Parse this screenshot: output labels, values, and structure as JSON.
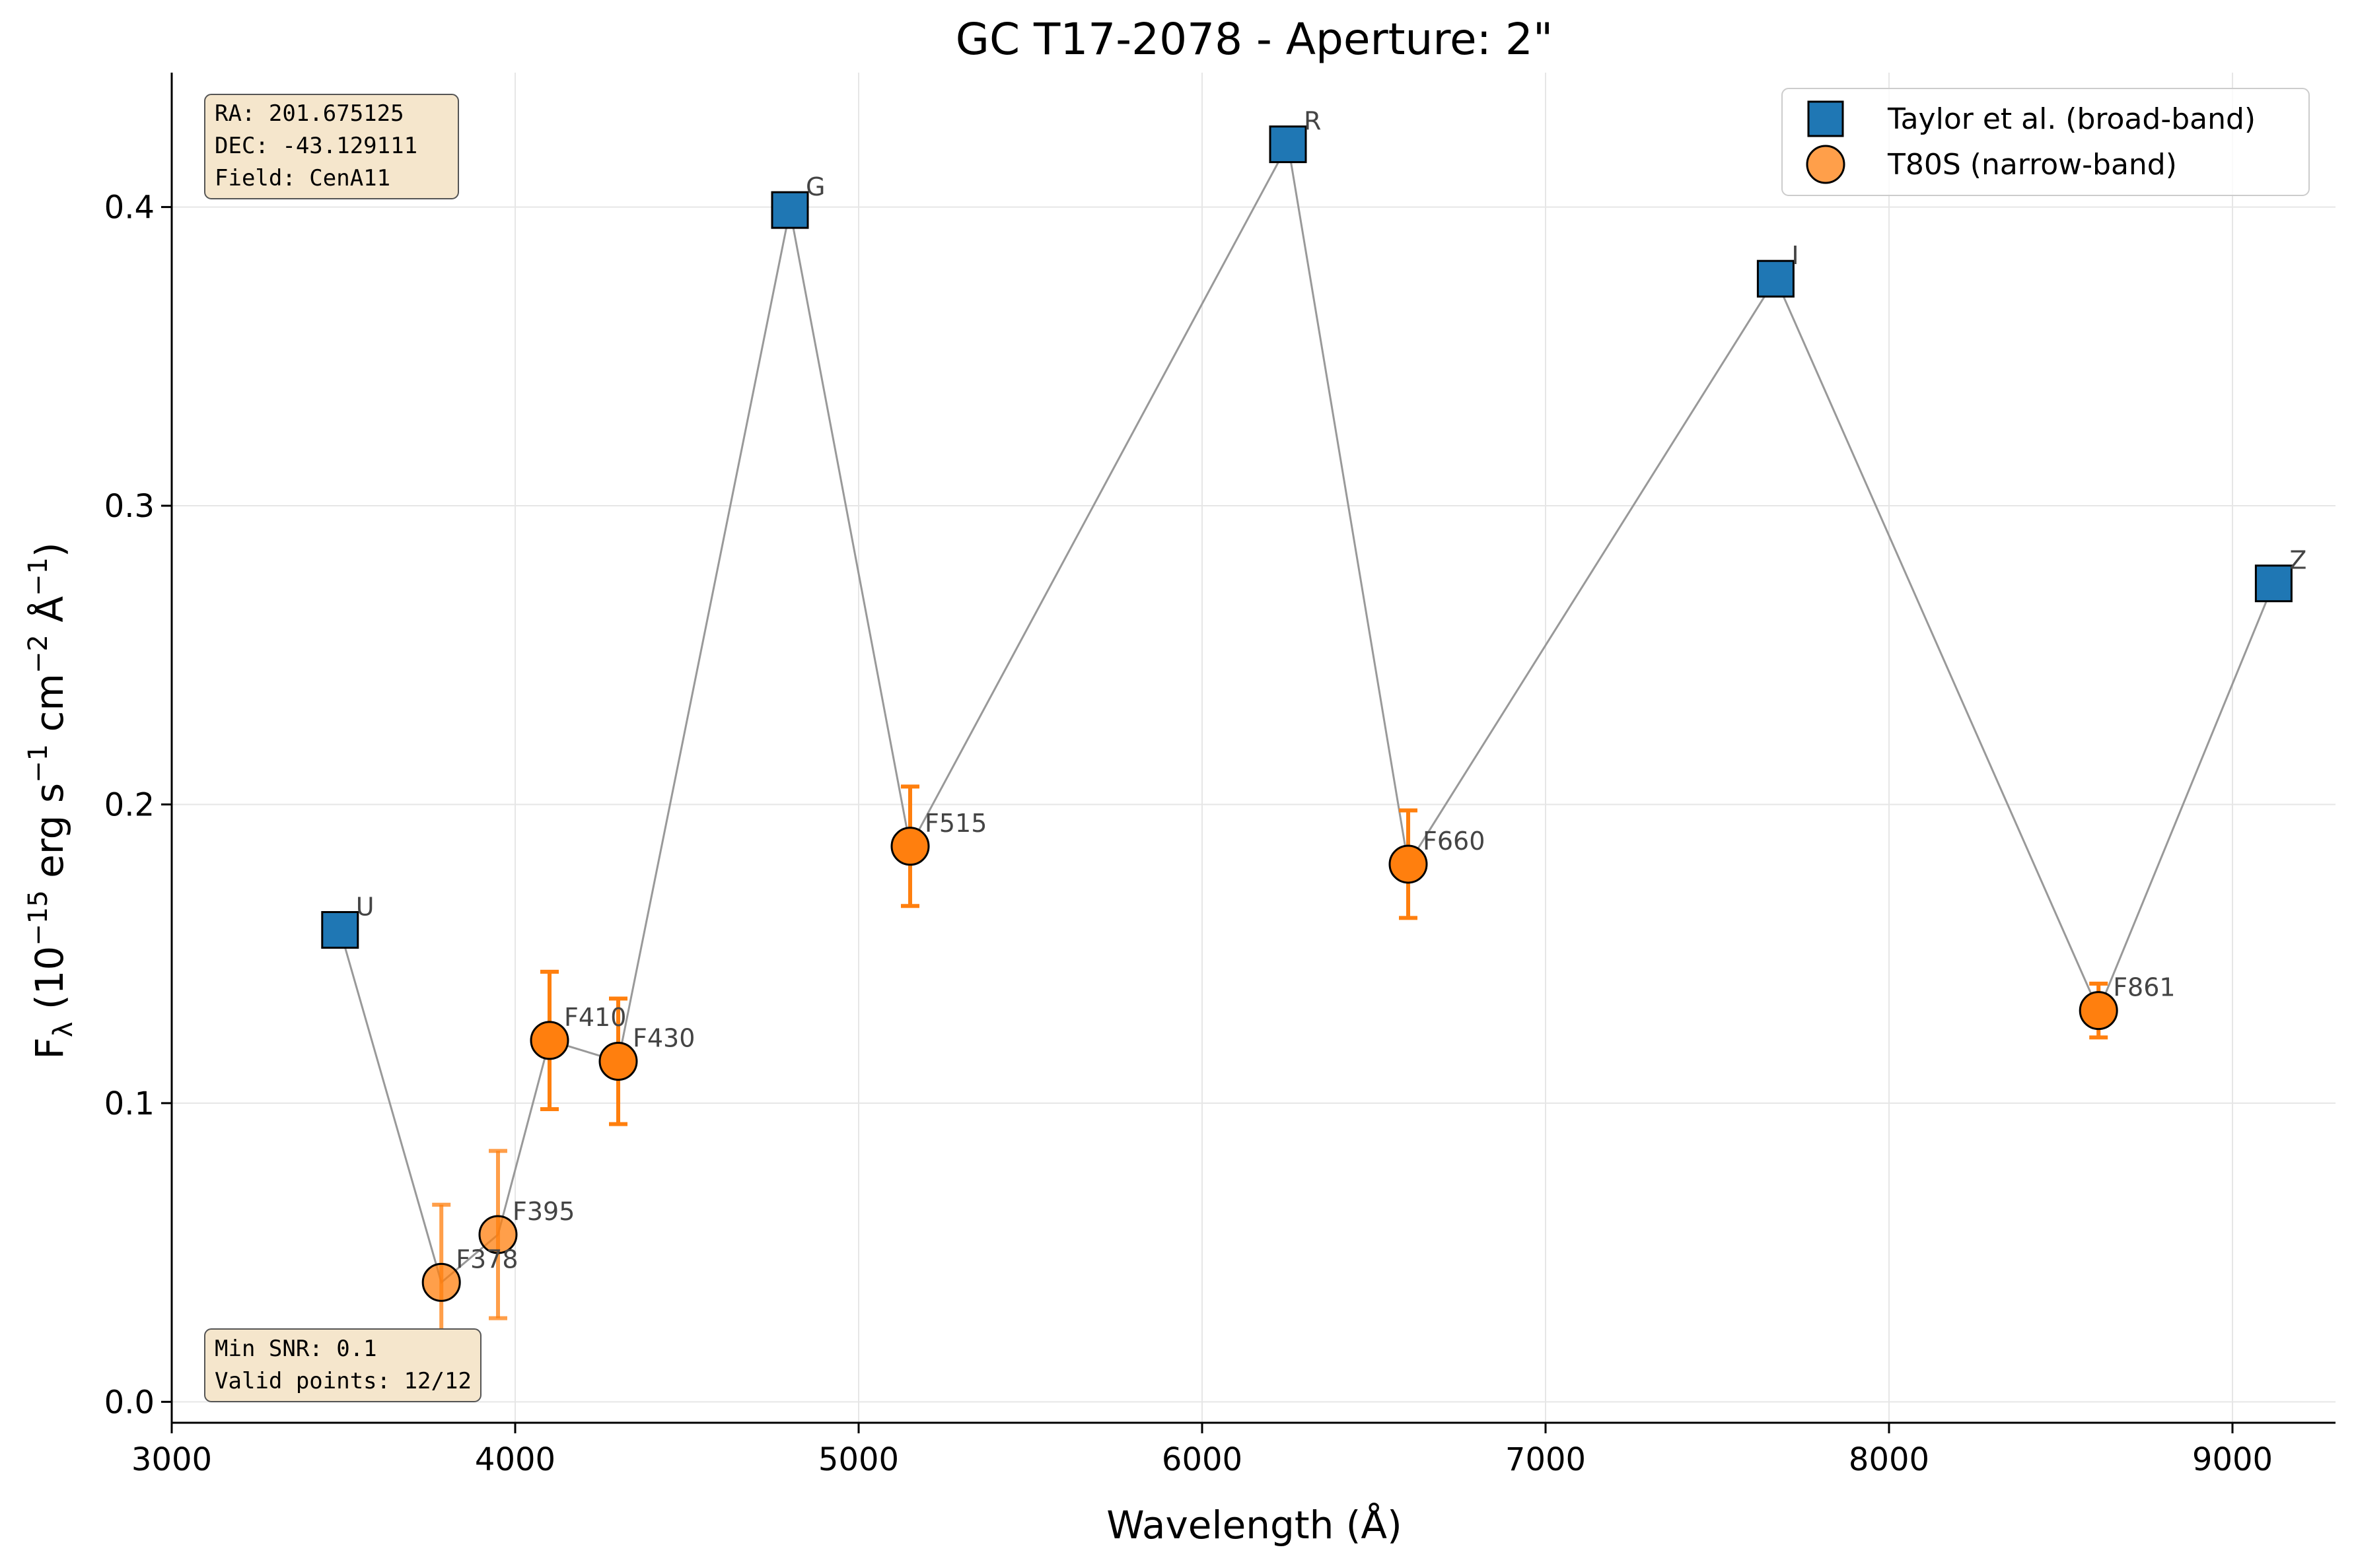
{
  "chart_data": {
    "type": "scatter",
    "title": "GC T17-2078 - Aperture: 2\"",
    "xlabel": "Wavelength (Å)",
    "ylabel": {
      "base": "F",
      "sub": "λ",
      "text1": " (10",
      "sup1": "−15",
      "text2": " erg s",
      "sup2": "−1",
      "text3": " cm",
      "sup3": "−2",
      "text4": " Å",
      "sup4": "−1",
      "text5": ")"
    },
    "xlim": [
      3000,
      9300
    ],
    "ylim": [
      -0.007,
      0.445
    ],
    "xticks": [
      3000,
      4000,
      5000,
      6000,
      7000,
      8000,
      9000
    ],
    "yticks": [
      0.0,
      0.1,
      0.2,
      0.3,
      0.4
    ],
    "ytick_labels": [
      "0.0",
      "0.1",
      "0.2",
      "0.3",
      "0.4"
    ],
    "grid": true,
    "legend_position": "top-right",
    "series": [
      {
        "name": "Taylor et al. (broad-band)",
        "marker": "square",
        "color": "#1f77b4",
        "points": [
          {
            "label": "U",
            "x": 3490,
            "y": 0.158
          },
          {
            "label": "G",
            "x": 4800,
            "y": 0.399
          },
          {
            "label": "R",
            "x": 6250,
            "y": 0.421
          },
          {
            "label": "I",
            "x": 7670,
            "y": 0.376
          },
          {
            "label": "Z",
            "x": 9120,
            "y": 0.274
          }
        ]
      },
      {
        "name": "T80S (narrow-band)",
        "marker": "circle",
        "color": "#ff7f0e",
        "points": [
          {
            "label": "F378",
            "x": 3785,
            "y": 0.04,
            "err": 0.026,
            "alpha": 0.75
          },
          {
            "label": "F395",
            "x": 3950,
            "y": 0.056,
            "err": 0.028,
            "alpha": 0.75
          },
          {
            "label": "F410",
            "x": 4100,
            "y": 0.121,
            "err": 0.023,
            "alpha": 1.0
          },
          {
            "label": "F430",
            "x": 4300,
            "y": 0.114,
            "err": 0.021,
            "alpha": 1.0
          },
          {
            "label": "F515",
            "x": 5150,
            "y": 0.186,
            "err": 0.02,
            "alpha": 1.0
          },
          {
            "label": "F660",
            "x": 6600,
            "y": 0.18,
            "err": 0.018,
            "alpha": 1.0
          },
          {
            "label": "F861",
            "x": 8610,
            "y": 0.131,
            "err": 0.009,
            "alpha": 1.0
          }
        ]
      }
    ],
    "connecting_line_order": [
      "U",
      "F378",
      "F395",
      "F410",
      "F430",
      "G",
      "F515",
      "R",
      "F660",
      "I",
      "F861",
      "Z"
    ],
    "info_top": [
      "RA: 201.675125",
      "DEC: -43.129111",
      "Field: CenA11"
    ],
    "info_bottom": [
      "Min SNR: 0.1",
      "Valid points: 12/12"
    ],
    "colors": {
      "broad": "#1f77b4",
      "narrow": "#ff7f0e",
      "line": "#999999",
      "grid": "#e6e6e6",
      "infobox_fill": "#f5e6cc",
      "infobox_stroke": "#555555"
    }
  }
}
